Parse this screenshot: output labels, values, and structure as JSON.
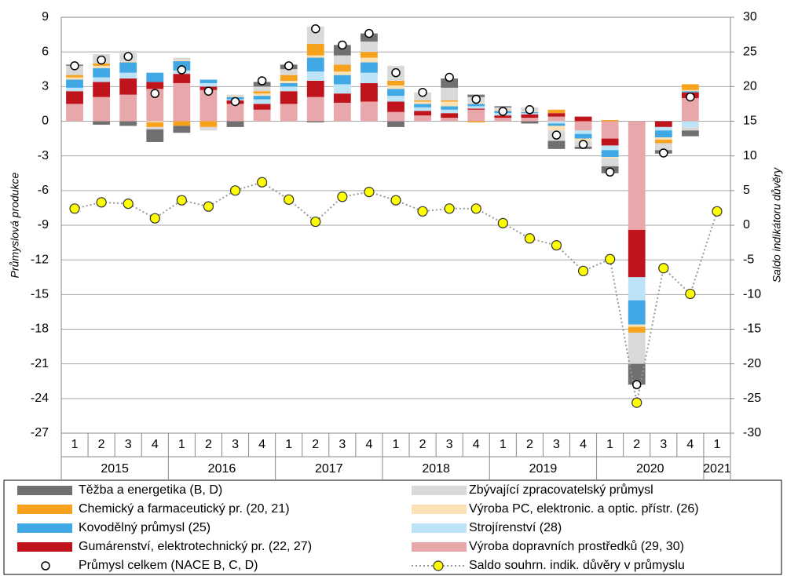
{
  "chart_data": {
    "type": "stacked-bar-line",
    "ylabel": "Průmyslová produkce",
    "y2label": "Saldo indikátoru důvěry",
    "years": [
      {
        "year": "2015",
        "quarters": [
          "1",
          "2",
          "3",
          "4"
        ]
      },
      {
        "year": "2016",
        "quarters": [
          "1",
          "2",
          "3",
          "4"
        ]
      },
      {
        "year": "2017",
        "quarters": [
          "1",
          "2",
          "3",
          "4"
        ]
      },
      {
        "year": "2018",
        "quarters": [
          "1",
          "2",
          "3",
          "4"
        ]
      },
      {
        "year": "2019",
        "quarters": [
          "1",
          "2",
          "3",
          "4"
        ]
      },
      {
        "year": "2020",
        "quarters": [
          "1",
          "2",
          "3",
          "4"
        ]
      },
      {
        "year": "2021",
        "quarters": [
          "1"
        ]
      }
    ],
    "ylim": [
      -27,
      9
    ],
    "yticks": [
      -27,
      -24,
      -21,
      -18,
      -15,
      -12,
      -9,
      -6,
      -3,
      0,
      3,
      6,
      9
    ],
    "y2lim": [
      -30,
      30
    ],
    "y2ticks": [
      -30,
      -25,
      -20,
      -15,
      -10,
      -5,
      0,
      5,
      10,
      15,
      20,
      25,
      30
    ],
    "grid": true,
    "series": [
      {
        "name": "Výroba dopravních prostředků (29, 30)",
        "color": "#e8a7ab",
        "values": [
          1.5,
          2.1,
          2.3,
          2.8,
          3.3,
          2.7,
          1.5,
          1.0,
          1.5,
          2.1,
          1.6,
          1.7,
          0.8,
          0.5,
          0.3,
          1.0,
          0.3,
          0.3,
          0.4,
          -0.8,
          -1.5,
          -9.4,
          0,
          2.0,
          null
        ]
      },
      {
        "name": "Gumárenství, elektrotechnický pr. (22, 27)",
        "color": "#c0141c",
        "values": [
          1.1,
          1.3,
          1.4,
          0.6,
          0.8,
          0.3,
          0.3,
          0.5,
          1.1,
          1.4,
          0.8,
          1.6,
          0.9,
          0.4,
          0.4,
          0.1,
          0.2,
          0.3,
          0.3,
          0.4,
          -0.6,
          -4.1,
          -0.5,
          0.5,
          null
        ]
      },
      {
        "name": "Strojírenství (28)",
        "color": "#bde3f6",
        "values": [
          0.3,
          0.4,
          0.5,
          0,
          0.3,
          0.3,
          0.1,
          0.4,
          0.4,
          0.8,
          0.8,
          0.9,
          0.5,
          0.3,
          0.3,
          0.2,
          0.2,
          0.1,
          -0.2,
          -0.3,
          -0.4,
          -2.0,
          -0.3,
          -0.5,
          null
        ]
      },
      {
        "name": "Kovodělný průmysl (25)",
        "color": "#3fa8e5",
        "values": [
          0.7,
          0.8,
          0.9,
          0.8,
          0.8,
          0.3,
          0.2,
          0.3,
          0.3,
          1.2,
          0.8,
          0.9,
          0.6,
          0.3,
          0.3,
          0.2,
          0.2,
          0.1,
          -0.2,
          -0.4,
          -0.6,
          -2.1,
          -0.6,
          0.1,
          null
        ]
      },
      {
        "name": "Výroba PC, elektronic. a optic. přístr. (26)",
        "color": "#fde1b5",
        "values": [
          0.2,
          0.2,
          0.1,
          -0.1,
          0.1,
          0,
          0.1,
          0.2,
          0.2,
          0.2,
          0.3,
          0.4,
          0.3,
          0.2,
          0.4,
          0.1,
          0.1,
          0.1,
          -0.4,
          -0.2,
          -0.1,
          -0.2,
          -0.2,
          0.1,
          null
        ]
      },
      {
        "name": "Chemický a farmaceutický pr. (20, 21)",
        "color": "#f7a21c",
        "values": [
          0.2,
          0.2,
          0,
          -0.4,
          -0.4,
          -0.5,
          0,
          0.2,
          0.5,
          1.0,
          0.6,
          0.5,
          0.4,
          0.1,
          0.1,
          -0.1,
          0,
          0,
          0.3,
          0,
          0.1,
          -0.5,
          -0.3,
          0.5,
          null
        ]
      },
      {
        "name": "Zbývající zpracovatelský průmysl",
        "color": "#d9d9d9",
        "values": [
          0.8,
          0.8,
          0.9,
          -0.2,
          0.2,
          -0.3,
          0.1,
          0.4,
          0.5,
          1.5,
          0.8,
          0.9,
          1.3,
          0.7,
          1.1,
          0.5,
          0.2,
          0.3,
          -0.9,
          -0.5,
          -0.7,
          -2.7,
          -0.6,
          -0.3,
          null
        ]
      },
      {
        "name": "Těžba a energetika (B, D)",
        "color": "#707070",
        "values": [
          0.1,
          -0.3,
          -0.4,
          -1.1,
          -0.6,
          0,
          -0.5,
          0.4,
          0.4,
          -0.1,
          0.9,
          0.7,
          -0.5,
          0,
          0.8,
          0.2,
          0.1,
          -0.2,
          -0.7,
          -0.2,
          -0.6,
          -1.8,
          -0.3,
          -0.5,
          null
        ]
      }
    ],
    "total": {
      "name": "Průmysl celkem (NACE B, C, D)",
      "values": [
        4.8,
        5.3,
        5.6,
        2.4,
        4.45,
        2.6,
        1.7,
        3.5,
        4.8,
        8.0,
        6.6,
        7.6,
        4.2,
        2.5,
        3.8,
        1.9,
        0.85,
        1.0,
        -1.2,
        -2.0,
        -4.4,
        -22.8,
        -2.75,
        2.1,
        null
      ]
    },
    "confidence": {
      "name": "Saldo souhrn. indik. důvěry v průmyslu",
      "axis": "y2",
      "color": "#ffff00",
      "values": [
        2.4,
        3.3,
        3.1,
        1.0,
        3.6,
        2.7,
        5.0,
        6.2,
        3.7,
        0.5,
        4.1,
        4.8,
        3.6,
        2.0,
        2.4,
        2.4,
        0.3,
        -1.9,
        -2.9,
        -6.6,
        -4.9,
        -25.6,
        -6.2,
        -9.9,
        2.0
      ]
    }
  }
}
